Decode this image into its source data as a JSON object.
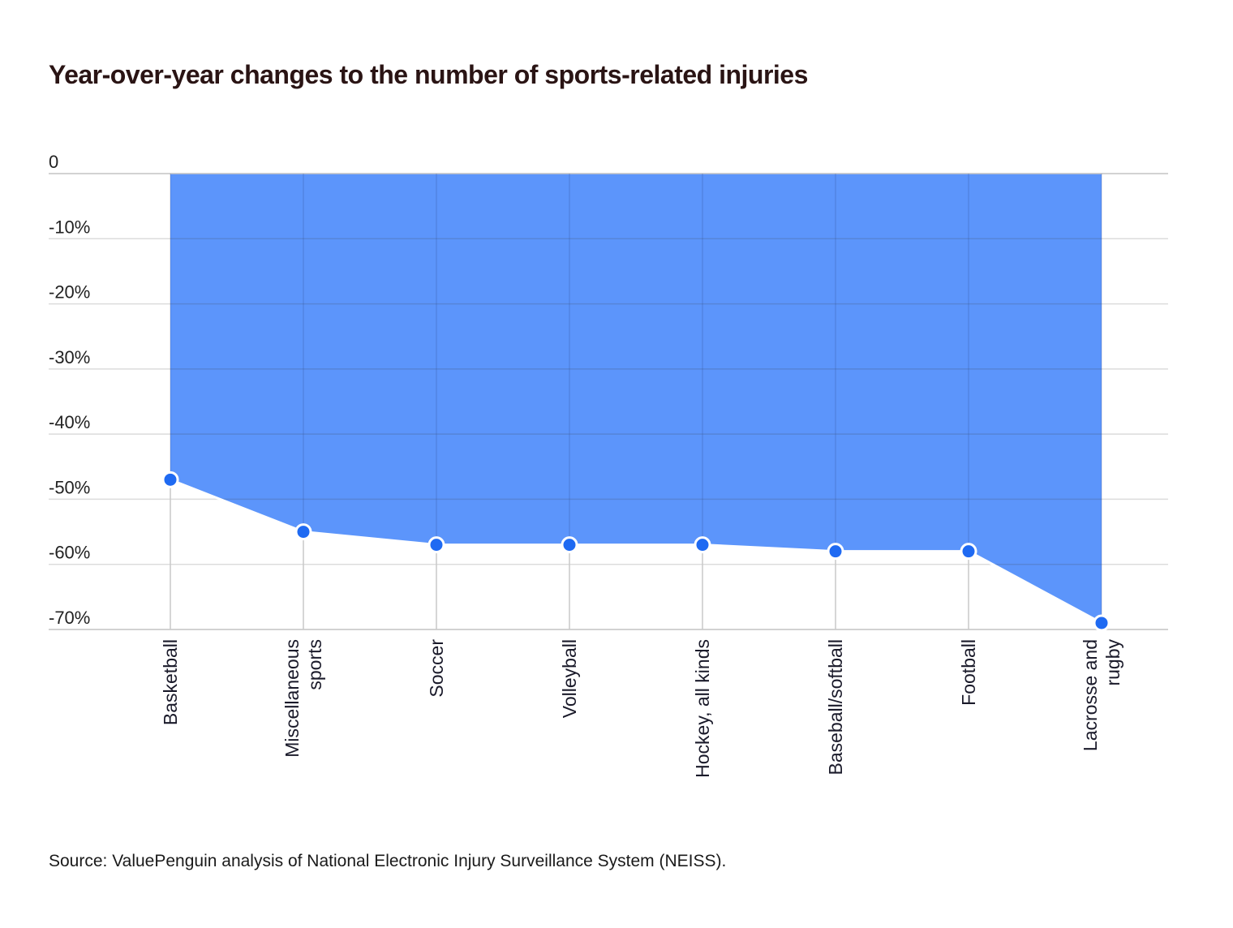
{
  "chart_data": {
    "type": "area",
    "title": "Year-over-year changes to the number of sports-related injuries",
    "categories": [
      [
        "Basketball"
      ],
      [
        "Miscellaneous",
        "sports"
      ],
      [
        "Soccer"
      ],
      [
        "Volleyball"
      ],
      [
        "Hockey, all kinds"
      ],
      [
        "Baseball/softball"
      ],
      [
        "Football"
      ],
      [
        "Lacrosse and",
        "rugby"
      ]
    ],
    "values": [
      -47,
      -55,
      -57,
      -57,
      -57,
      -58,
      -58,
      -69
    ],
    "y_ticks": [
      0,
      -10,
      -20,
      -30,
      -40,
      -50,
      -60,
      -70
    ],
    "y_tick_labels": [
      "0",
      "-10%",
      "-20%",
      "-30%",
      "-40%",
      "-50%",
      "-60%",
      "-70%"
    ],
    "ylim": [
      -70,
      0
    ],
    "grid": true,
    "colors": {
      "fill": "#5c95fb",
      "marker": "#1f6af2",
      "gridline": "#cfcfcf"
    }
  },
  "footer": {
    "source": "Source: ValuePenguin analysis of National Electronic Injury Surveillance System (NEISS)."
  }
}
